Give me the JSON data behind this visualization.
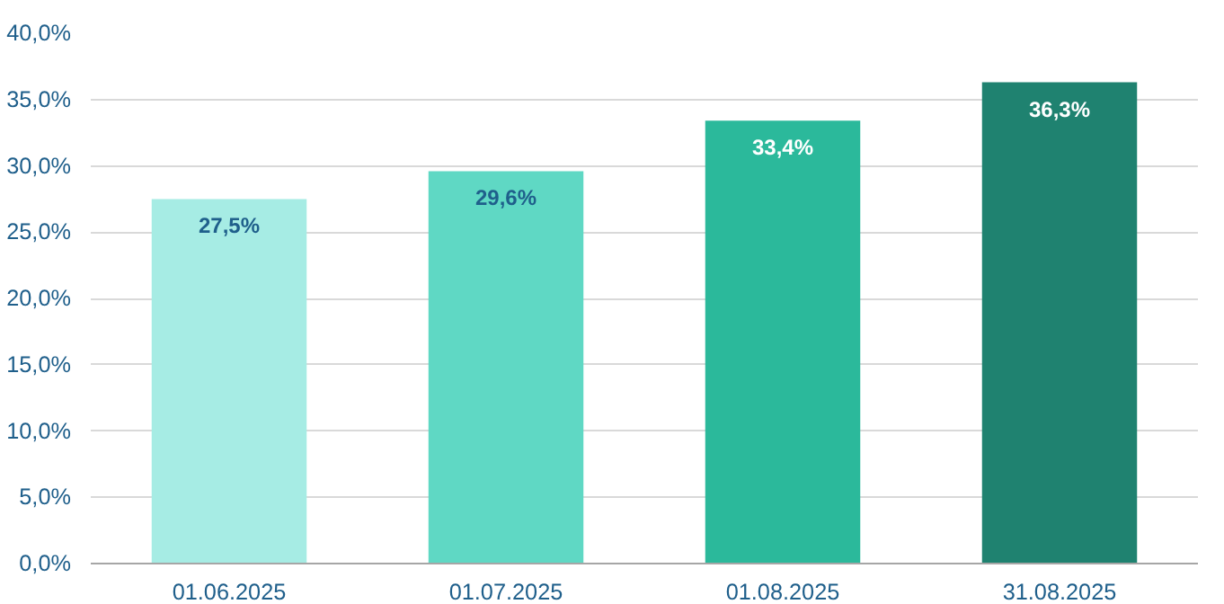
{
  "chart_data": {
    "type": "bar",
    "categories": [
      "01.06.2025",
      "01.07.2025",
      "01.08.2025",
      "31.08.2025"
    ],
    "values": [
      27.5,
      29.6,
      33.4,
      36.3
    ],
    "colors": [
      "#a6ece4",
      "#5fd8c4",
      "#2bb99b",
      "#1f8270"
    ],
    "value_labels": [
      "27,5%",
      "29,6%",
      "33,4%",
      "36,3%"
    ],
    "ylim": [
      0,
      40
    ],
    "yticks": [
      {
        "value": 0,
        "label": "0,0%"
      },
      {
        "value": 5,
        "label": "5,0%"
      },
      {
        "value": 10,
        "label": "10,0%"
      },
      {
        "value": 15,
        "label": "15,0%"
      },
      {
        "value": 20,
        "label": "20,0%"
      },
      {
        "value": 25,
        "label": "25,0%"
      },
      {
        "value": 30,
        "label": "30,0%"
      },
      {
        "value": 35,
        "label": "35,0%"
      },
      {
        "value": 40,
        "label": "40,0%"
      }
    ],
    "grid": "y"
  }
}
